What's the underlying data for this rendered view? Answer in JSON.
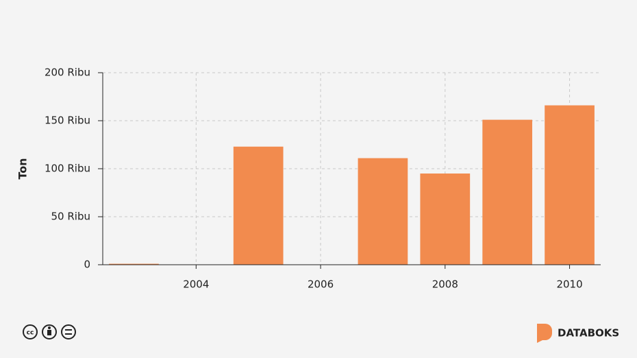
{
  "chart_data": {
    "type": "bar",
    "y_label": "Ton",
    "x": [
      2003,
      2004,
      2005,
      2006,
      2007,
      2008,
      2009,
      2010
    ],
    "values": [
      1000,
      null,
      123000,
      null,
      111000,
      95000,
      151000,
      166000
    ],
    "color": "#f28b4e",
    "xlim": [
      2002.5,
      2010.5
    ],
    "xticks": [
      2004,
      2006,
      2008,
      2010
    ],
    "ylim": [
      0,
      200000
    ],
    "yticks": [
      0,
      {
        "value": 50000,
        "label": "50 Ribu"
      },
      {
        "value": 100000,
        "label": "100 Ribu"
      },
      {
        "value": 150000,
        "label": "150 Ribu"
      },
      {
        "value": 200000,
        "label": "200 Ribu"
      }
    ],
    "grid": true
  },
  "brand": "DATABOKS"
}
